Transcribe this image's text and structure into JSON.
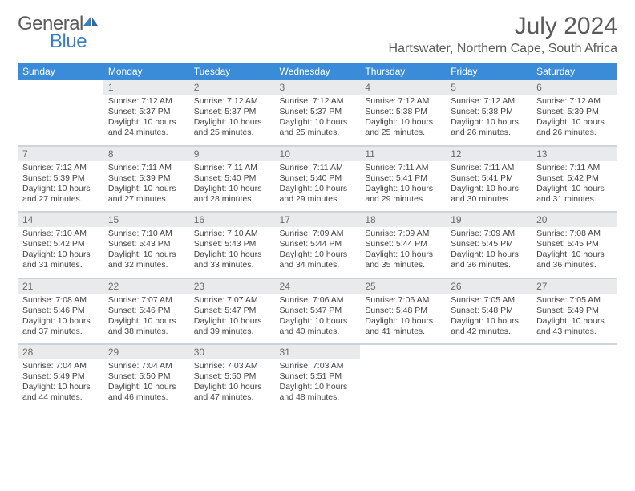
{
  "logo": {
    "text1": "General",
    "text2": "Blue"
  },
  "title": "July 2024",
  "location": "Hartswater, Northern Cape, South Africa",
  "colors": {
    "header_bg": "#3a8bd8",
    "header_fg": "#ffffff",
    "daynum_bg": "#e8eaec",
    "daynum_fg": "#6a6a6a",
    "text": "#444444",
    "title_fg": "#5a5a5a",
    "logo_blue": "#3a7fc4",
    "rule": "#cfd4d8"
  },
  "dow": [
    "Sunday",
    "Monday",
    "Tuesday",
    "Wednesday",
    "Thursday",
    "Friday",
    "Saturday"
  ],
  "weeks": [
    [
      {
        "n": "",
        "sr": "",
        "ss": "",
        "dl": ""
      },
      {
        "n": "1",
        "sr": "7:12 AM",
        "ss": "5:37 PM",
        "dl": "10 hours and 24 minutes."
      },
      {
        "n": "2",
        "sr": "7:12 AM",
        "ss": "5:37 PM",
        "dl": "10 hours and 25 minutes."
      },
      {
        "n": "3",
        "sr": "7:12 AM",
        "ss": "5:37 PM",
        "dl": "10 hours and 25 minutes."
      },
      {
        "n": "4",
        "sr": "7:12 AM",
        "ss": "5:38 PM",
        "dl": "10 hours and 25 minutes."
      },
      {
        "n": "5",
        "sr": "7:12 AM",
        "ss": "5:38 PM",
        "dl": "10 hours and 26 minutes."
      },
      {
        "n": "6",
        "sr": "7:12 AM",
        "ss": "5:39 PM",
        "dl": "10 hours and 26 minutes."
      }
    ],
    [
      {
        "n": "7",
        "sr": "7:12 AM",
        "ss": "5:39 PM",
        "dl": "10 hours and 27 minutes."
      },
      {
        "n": "8",
        "sr": "7:11 AM",
        "ss": "5:39 PM",
        "dl": "10 hours and 27 minutes."
      },
      {
        "n": "9",
        "sr": "7:11 AM",
        "ss": "5:40 PM",
        "dl": "10 hours and 28 minutes."
      },
      {
        "n": "10",
        "sr": "7:11 AM",
        "ss": "5:40 PM",
        "dl": "10 hours and 29 minutes."
      },
      {
        "n": "11",
        "sr": "7:11 AM",
        "ss": "5:41 PM",
        "dl": "10 hours and 29 minutes."
      },
      {
        "n": "12",
        "sr": "7:11 AM",
        "ss": "5:41 PM",
        "dl": "10 hours and 30 minutes."
      },
      {
        "n": "13",
        "sr": "7:11 AM",
        "ss": "5:42 PM",
        "dl": "10 hours and 31 minutes."
      }
    ],
    [
      {
        "n": "14",
        "sr": "7:10 AM",
        "ss": "5:42 PM",
        "dl": "10 hours and 31 minutes."
      },
      {
        "n": "15",
        "sr": "7:10 AM",
        "ss": "5:43 PM",
        "dl": "10 hours and 32 minutes."
      },
      {
        "n": "16",
        "sr": "7:10 AM",
        "ss": "5:43 PM",
        "dl": "10 hours and 33 minutes."
      },
      {
        "n": "17",
        "sr": "7:09 AM",
        "ss": "5:44 PM",
        "dl": "10 hours and 34 minutes."
      },
      {
        "n": "18",
        "sr": "7:09 AM",
        "ss": "5:44 PM",
        "dl": "10 hours and 35 minutes."
      },
      {
        "n": "19",
        "sr": "7:09 AM",
        "ss": "5:45 PM",
        "dl": "10 hours and 36 minutes."
      },
      {
        "n": "20",
        "sr": "7:08 AM",
        "ss": "5:45 PM",
        "dl": "10 hours and 36 minutes."
      }
    ],
    [
      {
        "n": "21",
        "sr": "7:08 AM",
        "ss": "5:46 PM",
        "dl": "10 hours and 37 minutes."
      },
      {
        "n": "22",
        "sr": "7:07 AM",
        "ss": "5:46 PM",
        "dl": "10 hours and 38 minutes."
      },
      {
        "n": "23",
        "sr": "7:07 AM",
        "ss": "5:47 PM",
        "dl": "10 hours and 39 minutes."
      },
      {
        "n": "24",
        "sr": "7:06 AM",
        "ss": "5:47 PM",
        "dl": "10 hours and 40 minutes."
      },
      {
        "n": "25",
        "sr": "7:06 AM",
        "ss": "5:48 PM",
        "dl": "10 hours and 41 minutes."
      },
      {
        "n": "26",
        "sr": "7:05 AM",
        "ss": "5:48 PM",
        "dl": "10 hours and 42 minutes."
      },
      {
        "n": "27",
        "sr": "7:05 AM",
        "ss": "5:49 PM",
        "dl": "10 hours and 43 minutes."
      }
    ],
    [
      {
        "n": "28",
        "sr": "7:04 AM",
        "ss": "5:49 PM",
        "dl": "10 hours and 44 minutes."
      },
      {
        "n": "29",
        "sr": "7:04 AM",
        "ss": "5:50 PM",
        "dl": "10 hours and 46 minutes."
      },
      {
        "n": "30",
        "sr": "7:03 AM",
        "ss": "5:50 PM",
        "dl": "10 hours and 47 minutes."
      },
      {
        "n": "31",
        "sr": "7:03 AM",
        "ss": "5:51 PM",
        "dl": "10 hours and 48 minutes."
      },
      {
        "n": "",
        "sr": "",
        "ss": "",
        "dl": ""
      },
      {
        "n": "",
        "sr": "",
        "ss": "",
        "dl": ""
      },
      {
        "n": "",
        "sr": "",
        "ss": "",
        "dl": ""
      }
    ]
  ],
  "labels": {
    "sunrise": "Sunrise: ",
    "sunset": "Sunset: ",
    "daylight": "Daylight: "
  }
}
